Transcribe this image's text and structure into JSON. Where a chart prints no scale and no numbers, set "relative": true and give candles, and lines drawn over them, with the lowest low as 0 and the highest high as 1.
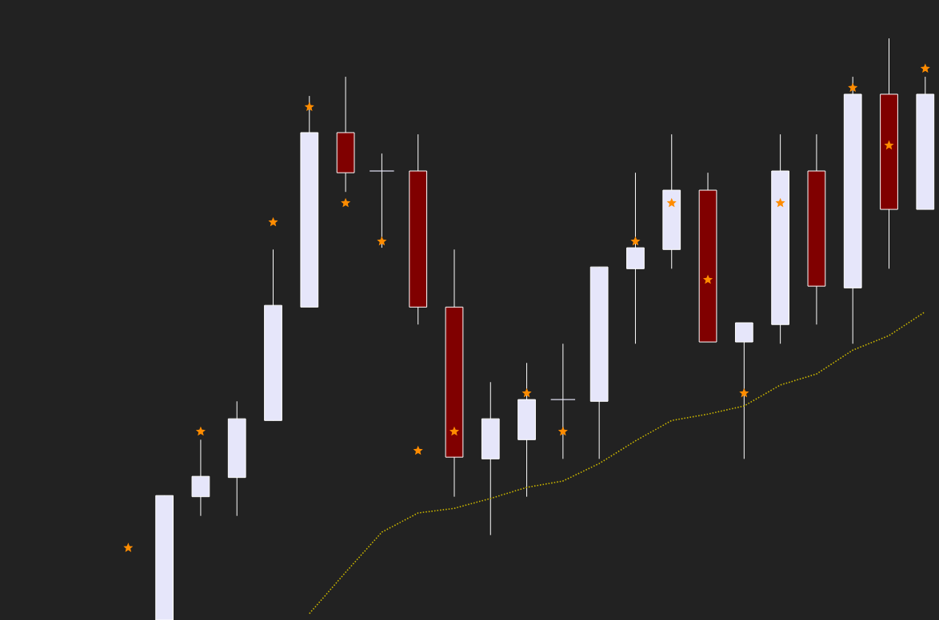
{
  "chart_data": {
    "type": "candlestick",
    "relative": true,
    "tick_labels": false,
    "categories": [
      null,
      null,
      null,
      null,
      null,
      null,
      null,
      null,
      null,
      null,
      null,
      null,
      null,
      null,
      null,
      null,
      null,
      null,
      null,
      null,
      null,
      null,
      null
    ],
    "ohlc": [
      null,
      [
        0,
        0.214,
        0,
        0.214
      ],
      [
        0.212,
        0.31,
        0.179,
        0.247
      ],
      [
        0.245,
        0.376,
        0.179,
        0.346
      ],
      [
        0.343,
        0.637,
        0.343,
        0.541
      ],
      [
        0.538,
        0.901,
        0.538,
        0.838
      ],
      [
        0.838,
        0.934,
        0.736,
        0.769
      ],
      [
        0.772,
        0.802,
        0.64,
        0.772
      ],
      [
        0.772,
        0.835,
        0.508,
        0.538
      ],
      [
        0.538,
        0.637,
        0.212,
        0.28
      ],
      [
        0.277,
        0.409,
        0.146,
        0.346
      ],
      [
        0.31,
        0.442,
        0.212,
        0.379
      ],
      [
        0.379,
        0.475,
        0.277,
        0.379
      ],
      [
        0.376,
        0.607,
        0.277,
        0.607
      ],
      [
        0.604,
        0.769,
        0.475,
        0.64
      ],
      [
        0.637,
        0.835,
        0.604,
        0.739
      ],
      [
        0.739,
        0.769,
        0.478,
        0.478
      ],
      [
        0.478,
        0.511,
        0.277,
        0.511
      ],
      [
        0.508,
        0.835,
        0.475,
        0.772
      ],
      [
        0.772,
        0.835,
        0.508,
        0.574
      ],
      [
        0.571,
        0.934,
        0.475,
        0.904
      ],
      [
        0.904,
        1,
        0.604,
        0.706
      ],
      [
        0.706,
        0.934,
        0.706,
        0.904
      ]
    ],
    "colors": [
      null,
      "#e6e6fa",
      "#e6e6fa",
      "#e6e6fa",
      "#e6e6fa",
      "#e6e6fa",
      "#800000",
      "#e6e6fa",
      "#800000",
      "#800000",
      "#e6e6fa",
      "#e6e6fa",
      "#e6e6fa",
      "#e6e6fa",
      "#e6e6fa",
      "#e6e6fa",
      "#800000",
      "#e6e6fa",
      "#e6e6fa",
      "#800000",
      "#e6e6fa",
      "#800000",
      "#e6e6fa"
    ],
    "series": [
      {
        "type": "line",
        "color": "#c8b400",
        "line_style": "dotted",
        "marker": "none",
        "values": [
          null,
          null,
          null,
          null,
          null,
          0.011,
          0.082,
          0.151,
          0.184,
          0.192,
          0.209,
          0.228,
          0.239,
          0.269,
          0.308,
          0.343,
          0.354,
          0.368,
          0.404,
          0.423,
          0.464,
          0.489,
          0.53
        ]
      },
      {
        "type": "scatter",
        "color": "#ff8c00",
        "marker": "star",
        "values": [
          0.124,
          null,
          0.324,
          null,
          0.684,
          0.882,
          0.717,
          0.651,
          0.291,
          0.324,
          null,
          0.39,
          0.324,
          null,
          0.651,
          0.717,
          0.585,
          0.39,
          0.717,
          null,
          0.915,
          0.816,
          0.948
        ]
      }
    ]
  }
}
